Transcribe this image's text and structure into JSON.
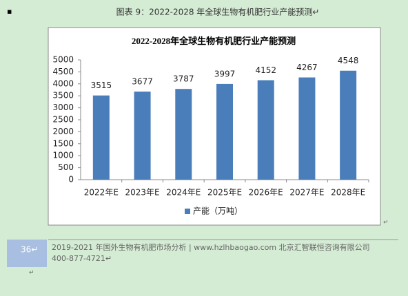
{
  "bullet": "▪",
  "caption": "图表 9：2022-2028 年全球生物有机肥行业产能预测↵",
  "chart_data": {
    "type": "bar",
    "title": "2022-2028年全球生物有机肥行业产能预测",
    "categories": [
      "2022年E",
      "2023年E",
      "2024年E",
      "2025年E",
      "2026年E",
      "2027年E",
      "2028年E"
    ],
    "series": [
      {
        "name": "产能（万吨）",
        "color": "#4a7ebb",
        "values": [
          3515,
          3677,
          3787,
          3997,
          4152,
          4267,
          4548
        ]
      }
    ],
    "ylim": [
      0,
      5000
    ],
    "yticks": [
      0,
      500,
      1000,
      1500,
      2000,
      2500,
      3000,
      3500,
      4000,
      4500,
      5000
    ],
    "legend": "bottom"
  },
  "chart_mark": "↵",
  "footer": {
    "page": "36↵",
    "line1": "2019-2021 年国外生物有机肥市场分析 | www.hzlhbaogao.com 北京汇智联恒咨询有限公司",
    "line2": "400-877-4721↵",
    "end_mark": "↵"
  }
}
